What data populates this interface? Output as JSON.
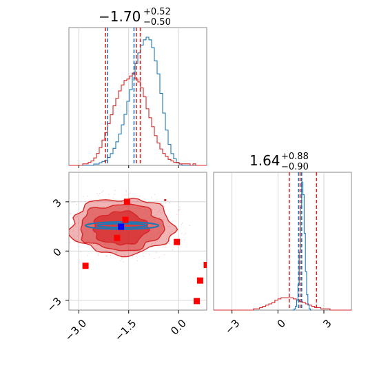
{
  "chart_data": {
    "type": "corner",
    "colors": {
      "primary": "#1f77b4",
      "secondary": "#d62728",
      "grid": "#c8c8c8",
      "marker_blue": "#0000ff",
      "marker_red": "#ff0000"
    },
    "parameters": [
      {
        "title": {
          "median": "−1.70",
          "plus": "+0.52",
          "minus": "−0.50"
        },
        "range": [
          -3.3,
          0.85
        ],
        "ticks": [
          {
            "v": -3.0,
            "label": "−3.0"
          },
          {
            "v": -1.5,
            "label": "−1.5"
          },
          {
            "v": 0.0,
            "label": "0.0"
          }
        ],
        "lines_blue": [
          -2.14,
          -1.34
        ],
        "lines_red": [
          -2.2,
          -1.15,
          -1.27
        ],
        "hist_blue": {
          "edges": [
            -3.3,
            0.85
          ],
          "values": [
            0,
            0,
            0,
            0,
            0,
            0,
            0,
            0,
            0,
            1,
            1,
            2,
            3,
            4,
            6,
            9,
            13,
            18,
            24,
            31,
            39,
            49,
            58,
            70,
            78,
            86,
            92,
            96,
            98,
            96,
            90,
            80,
            70,
            55,
            40,
            27,
            16,
            9,
            5,
            2,
            1,
            0,
            0,
            0,
            0,
            0,
            0,
            0,
            0,
            0
          ]
        },
        "hist_red": {
          "edges": [
            -3.3,
            0.85
          ],
          "values": [
            0,
            0,
            0,
            0,
            0,
            1,
            1,
            2,
            3,
            5,
            8,
            12,
            17,
            22,
            28,
            34,
            40,
            45,
            50,
            54,
            57,
            58,
            60,
            62,
            58,
            56,
            52,
            46,
            38,
            32,
            26,
            20,
            15,
            11,
            8,
            6,
            4,
            3,
            2,
            2,
            1,
            1,
            1,
            1,
            0,
            1,
            0,
            0,
            0,
            0
          ]
        }
      },
      {
        "title": {
          "median": "1.64",
          "plus": "+0.88",
          "minus": "−0.90"
        },
        "range": [
          -4.2,
          4.8
        ],
        "ticks": [
          {
            "v": -3,
            "label": "−3"
          },
          {
            "v": 0,
            "label": "0"
          },
          {
            "v": 3,
            "label": "3"
          }
        ],
        "lines_blue": [
          1.35,
          1.55
        ],
        "lines_red": [
          0.74,
          1.45,
          2.52
        ],
        "hist_blue": {
          "edges": [
            0.9,
            2.2
          ],
          "values": [
            0,
            0,
            1,
            3,
            8,
            20,
            45,
            80,
            100,
            90,
            60,
            30,
            12,
            4,
            1,
            0
          ]
        },
        "hist_red": {
          "edges": [
            -4.2,
            4.8
          ],
          "values": [
            0,
            0,
            0,
            0,
            0,
            0,
            0,
            0,
            0,
            0,
            0,
            0,
            0,
            1,
            1,
            2,
            3,
            4,
            5,
            6,
            8,
            9,
            10,
            10,
            10,
            10,
            9,
            8,
            7,
            6,
            5,
            4,
            3,
            2,
            2,
            1,
            1,
            1,
            0,
            0,
            0,
            0,
            0,
            0,
            0
          ]
        }
      }
    ],
    "joint": {
      "x_range": [
        -3.3,
        0.85
      ],
      "y_range": [
        -3.6,
        4.8
      ],
      "y_ticks": [
        {
          "v": -3,
          "label": "−3"
        },
        {
          "v": 0,
          "label": "0"
        },
        {
          "v": 3,
          "label": "3"
        }
      ],
      "red_contours": [
        {
          "cx": -1.7,
          "cy": 1.5,
          "rx": 1.55,
          "ry": 1.7,
          "opacity": 0.35
        },
        {
          "cx": -1.72,
          "cy": 1.45,
          "rx": 1.25,
          "ry": 1.4,
          "opacity": 0.5
        },
        {
          "cx": -1.75,
          "cy": 1.4,
          "rx": 0.82,
          "ry": 1.0,
          "opacity": 0.7
        }
      ],
      "blue_contours": [
        {
          "cx": -1.7,
          "cy": 1.55,
          "rx": 1.1,
          "ry": 0.22
        },
        {
          "cx": -1.7,
          "cy": 1.55,
          "rx": 0.75,
          "ry": 0.12
        }
      ],
      "square_red": [
        {
          "x": -1.55,
          "y": 3.0
        },
        {
          "x": -1.6,
          "y": 1.9
        },
        {
          "x": -1.85,
          "y": 0.8
        },
        {
          "x": -2.8,
          "y": -0.9
        },
        {
          "x": -0.05,
          "y": 0.55
        },
        {
          "x": 0.85,
          "y": -0.85
        },
        {
          "x": 0.65,
          "y": -1.8
        },
        {
          "x": 0.55,
          "y": -3.05
        }
      ],
      "square_blue": [
        {
          "x": -1.73,
          "y": 1.48
        }
      ],
      "small_red": [
        {
          "x": -0.4,
          "y": 3.1
        }
      ]
    }
  }
}
